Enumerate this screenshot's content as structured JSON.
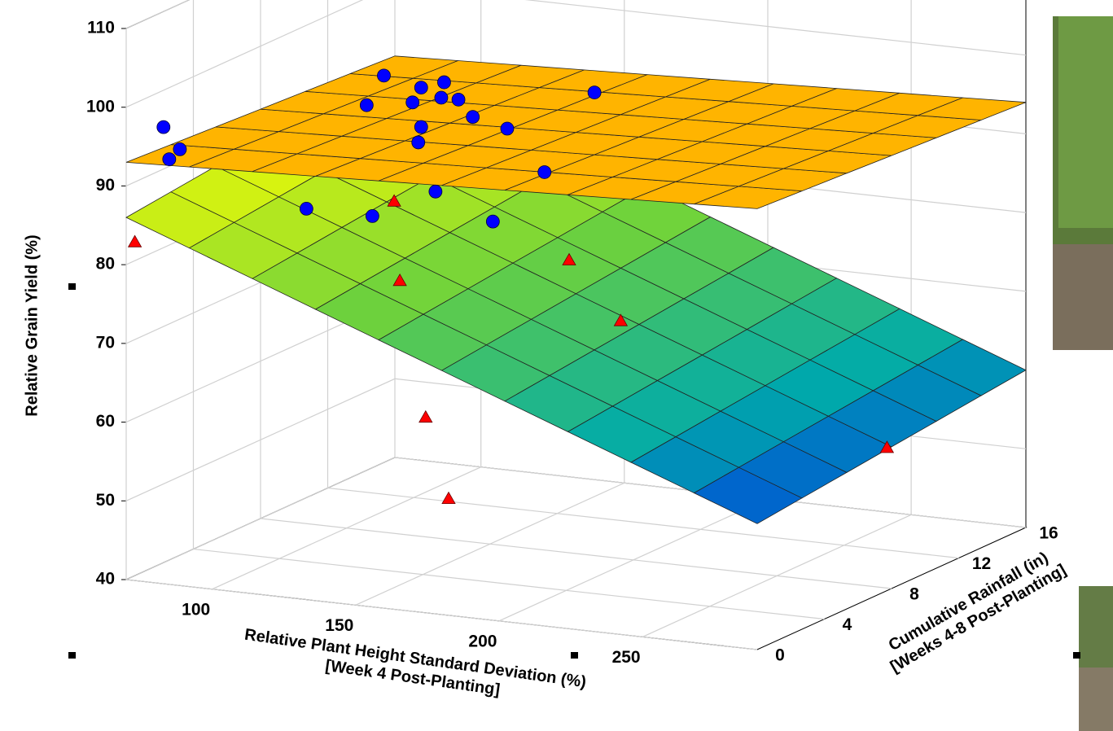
{
  "chart_data": {
    "type": "scatter3d",
    "z_label": "Relative Grain Yield (%)",
    "x_label": [
      "Relative Plant Height Standard Deviation (%)",
      "[Week 4 Post-Planting]"
    ],
    "y_label": [
      "Cumulative Rainfall (in)",
      "[Weeks 4-8 Post-Planting]"
    ],
    "xlim": [
      70,
      290
    ],
    "xticks": [
      100,
      150,
      200,
      250
    ],
    "ylim": [
      0,
      16
    ],
    "yticks": [
      0,
      4,
      8,
      12,
      16
    ],
    "zlim": [
      40,
      110
    ],
    "zticks": [
      40,
      50,
      60,
      70,
      80,
      90,
      100,
      110
    ],
    "grid": true,
    "surfaces": [
      {
        "style": "colormap",
        "x": [
          70,
          290
        ],
        "y": [
          0,
          16
        ],
        "z": [
          [
            86,
            90
          ],
          [
            56,
            60
          ]
        ]
      },
      {
        "style": "flat",
        "color": "#ffb400",
        "x": [
          70,
          290
        ],
        "y": [
          0,
          16
        ],
        "z": [
          [
            93,
            91
          ],
          [
            96,
            94
          ]
        ]
      }
    ],
    "series": [
      {
        "marker": "triangle",
        "color": "#ff0000",
        "x": [
          73,
          140,
          142,
          201,
          219,
          151,
          159,
          265
        ],
        "y": [
          0,
          4,
          4,
          4,
          4,
          4,
          4,
          12
        ],
        "z": [
          83,
          87,
          77,
          82,
          75,
          60,
          50,
          53
        ]
      },
      {
        "marker": "circle",
        "color": "#0000ff",
        "x": [
          83,
          77,
          85,
          113,
          126,
          134,
          123,
          133,
          139,
          107,
          144,
          156,
          126,
          125,
          163,
          169,
          131,
          86,
          109,
          151
        ],
        "y": [
          0,
          2,
          0,
          8,
          8,
          8,
          8,
          8,
          8,
          8,
          8,
          8,
          8,
          8,
          12,
          8,
          8,
          8,
          8,
          8
        ],
        "z": [
          98,
          93,
          94,
          98,
          97,
          98,
          95,
          96,
          96,
          94,
          94,
          93,
          92,
          90,
          94,
          88,
          84,
          80,
          80,
          81
        ]
      }
    ]
  }
}
